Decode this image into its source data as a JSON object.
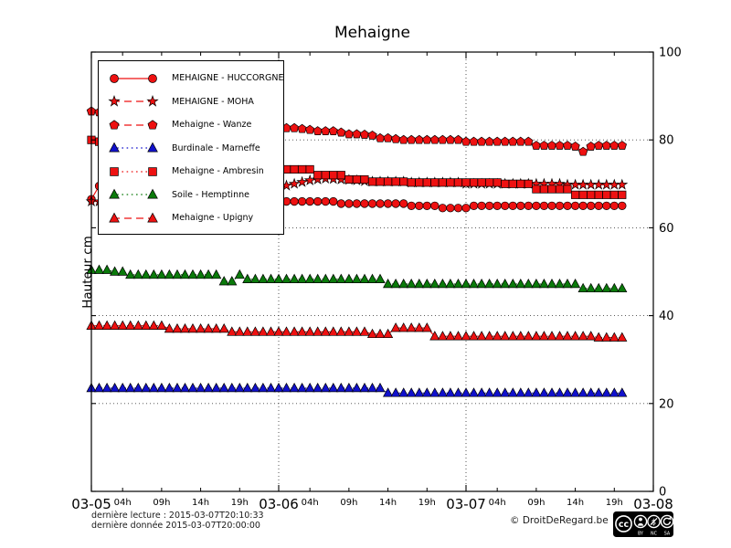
{
  "title": "Mehaigne",
  "ylabel": "Hauteur cm",
  "footer": {
    "derniere_lecture": "dernière lecture : 2015-03-07T20:10:33",
    "derniere_donnee": "dernière donnée  2015-03-07T20:00:00",
    "copyright": "© DroitDeRegard.be",
    "cc_badge_labels": [
      "BY",
      "NC",
      "SA"
    ]
  },
  "chart_data": {
    "type": "line",
    "title": "Mehaigne",
    "ylabel": "Hauteur cm",
    "ylim": [
      0,
      100
    ],
    "y_ticks": [
      0,
      20,
      40,
      60,
      80,
      100
    ],
    "y_gridlines": [
      20,
      40,
      60,
      80
    ],
    "x_start": "2015-03-05T00:00",
    "x_range_hours": [
      0,
      72
    ],
    "x_major_ticks": [
      {
        "h": 0,
        "label": "03-05"
      },
      {
        "h": 24,
        "label": "03-06"
      },
      {
        "h": 48,
        "label": "03-07"
      },
      {
        "h": 72,
        "label": "03-08"
      }
    ],
    "x_minor_ticks": [
      {
        "h": 4,
        "label": "04h"
      },
      {
        "h": 9,
        "label": "09h"
      },
      {
        "h": 14,
        "label": "14h"
      },
      {
        "h": 19,
        "label": "19h"
      },
      {
        "h": 28,
        "label": "04h"
      },
      {
        "h": 33,
        "label": "09h"
      },
      {
        "h": 38,
        "label": "14h"
      },
      {
        "h": 43,
        "label": "19h"
      },
      {
        "h": 52,
        "label": "04h"
      },
      {
        "h": 57,
        "label": "09h"
      },
      {
        "h": 62,
        "label": "14h"
      },
      {
        "h": 67,
        "label": "19h"
      }
    ],
    "x_day_gridlines": [
      24,
      48
    ],
    "grid_style": "dotted",
    "legend_position": "upper-left",
    "sample_interval_hours": 1,
    "sample_start_hour": 0,
    "series": [
      {
        "label": "MEHAIGNE - HUCCORGNE",
        "slug": "huccorgne",
        "color": "#ee1111",
        "marker": "circle",
        "line": "solid",
        "values": [
          66.5,
          69.5,
          68.8,
          68.5,
          68.2,
          68,
          67.8,
          67.6,
          67.4,
          67.3,
          67.2,
          67.1,
          67,
          67,
          66.9,
          66.8,
          66.8,
          66.7,
          66.6,
          66.5,
          66.4,
          66.3,
          66.2,
          66.1,
          66,
          66,
          66,
          66,
          66,
          66,
          66,
          66,
          65.5,
          65.5,
          65.5,
          65.5,
          65.5,
          65.5,
          65.5,
          65.5,
          65.5,
          65,
          65,
          65,
          65,
          64.5,
          64.5,
          64.5,
          64.5,
          65,
          65,
          65,
          65,
          65,
          65,
          65,
          65,
          65,
          65,
          65,
          65,
          65,
          65,
          65,
          65,
          65,
          65,
          65,
          65
        ]
      },
      {
        "label": "MEHAIGNE - MOHA",
        "slug": "moha",
        "color": "#ee1111",
        "marker": "star",
        "line": "dashed",
        "values": [
          66,
          66,
          66,
          66,
          66,
          66,
          66.5,
          66.5,
          66.5,
          66.5,
          66.5,
          66.5,
          67.2,
          67.2,
          67.2,
          67.2,
          67.2,
          67.2,
          68,
          68,
          68,
          68,
          68.8,
          68.8,
          69.3,
          69.6,
          70,
          70.4,
          70.8,
          71,
          71.2,
          71.1,
          71,
          70.9,
          70.8,
          70.6,
          70.5,
          70.5,
          70.5,
          70.5,
          70.5,
          70.3,
          70.3,
          70.3,
          70.3,
          70.3,
          70.3,
          70.3,
          70,
          70,
          70,
          70,
          70,
          70,
          70,
          70,
          70,
          70,
          70,
          70,
          70,
          69.8,
          69.8,
          69.8,
          69.8,
          69.8,
          69.8,
          69.8,
          69.8
        ]
      },
      {
        "label": "Mehaigne - Wanze",
        "slug": "wanze",
        "color": "#ee1111",
        "marker": "pentagon",
        "line": "dashed",
        "values": [
          86.5,
          86.3,
          86,
          85.6,
          85.2,
          84.8,
          84.4,
          84,
          83.7,
          83.4,
          83.2,
          83,
          83,
          83,
          83,
          83,
          83,
          83,
          82.9,
          82.9,
          82.8,
          82.8,
          82.7,
          82.7,
          82.7,
          82.7,
          82.7,
          82.5,
          82.3,
          82,
          82,
          82,
          81.7,
          81.3,
          81.3,
          81.2,
          81,
          80.4,
          80.4,
          80.2,
          80,
          80,
          80,
          80,
          80,
          80,
          80,
          80,
          79.6,
          79.6,
          79.6,
          79.6,
          79.6,
          79.6,
          79.6,
          79.6,
          79.6,
          78.7,
          78.7,
          78.7,
          78.7,
          78.7,
          78.5,
          77.3,
          78.5,
          78.7,
          78.7,
          78.7,
          78.7
        ]
      },
      {
        "label": "Burdinale - Marneffe",
        "slug": "marneffe",
        "color": "#1111cc",
        "marker": "triangle",
        "line": "dotted",
        "values": [
          23.5,
          23.5,
          23.5,
          23.5,
          23.5,
          23.5,
          23.5,
          23.5,
          23.5,
          23.5,
          23.5,
          23.5,
          23.5,
          23.5,
          23.5,
          23.5,
          23.5,
          23.5,
          23.5,
          23.5,
          23.5,
          23.5,
          23.5,
          23.5,
          23.5,
          23.5,
          23.5,
          23.5,
          23.5,
          23.5,
          23.5,
          23.5,
          23.5,
          23.5,
          23.5,
          23.5,
          23.5,
          23.5,
          22.4,
          22.4,
          22.4,
          22.4,
          22.4,
          22.4,
          22.4,
          22.4,
          22.4,
          22.4,
          22.4,
          22.4,
          22.4,
          22.4,
          22.4,
          22.4,
          22.4,
          22.4,
          22.4,
          22.4,
          22.4,
          22.4,
          22.4,
          22.4,
          22.4,
          22.4,
          22.4,
          22.4,
          22.4,
          22.4,
          22.4
        ]
      },
      {
        "label": "Mehaigne - Ambresin",
        "slug": "ambresin",
        "color": "#ee1111",
        "marker": "square",
        "line": "dotted",
        "values": [
          80,
          79.6,
          79.2,
          78.8,
          78.4,
          78,
          77.6,
          77.2,
          76.8,
          76.4,
          76,
          75.7,
          75.4,
          75.1,
          74.8,
          74.5,
          74.3,
          74.1,
          73.9,
          73.8,
          73.7,
          73.6,
          73.5,
          73.5,
          73.3,
          73.3,
          73.3,
          73.3,
          73.3,
          72,
          72,
          72,
          72,
          71,
          71,
          71,
          70.5,
          70.5,
          70.5,
          70.5,
          70.5,
          70.3,
          70.3,
          70.3,
          70.3,
          70.3,
          70.3,
          70.3,
          70.3,
          70.3,
          70.3,
          70.3,
          70.3,
          70,
          70,
          70,
          70,
          68.8,
          68.8,
          68.8,
          68.8,
          68.8,
          67.5,
          67.5,
          67.5,
          67.5,
          67.5,
          67.5,
          67.5
        ]
      },
      {
        "label": "Soile - Hemptinne",
        "slug": "hemptinne",
        "color": "#0a7a0a",
        "marker": "triangle",
        "line": "dotted",
        "values": [
          50.4,
          50.4,
          50.4,
          50,
          50,
          49.3,
          49.3,
          49.3,
          49.3,
          49.3,
          49.3,
          49.3,
          49.3,
          49.3,
          49.3,
          49.3,
          49.3,
          47.8,
          47.8,
          49.3,
          48.3,
          48.3,
          48.3,
          48.3,
          48.3,
          48.3,
          48.3,
          48.3,
          48.3,
          48.3,
          48.3,
          48.3,
          48.3,
          48.3,
          48.3,
          48.3,
          48.3,
          48.3,
          47.2,
          47.2,
          47.2,
          47.2,
          47.2,
          47.2,
          47.2,
          47.2,
          47.2,
          47.2,
          47.2,
          47.2,
          47.2,
          47.2,
          47.2,
          47.2,
          47.2,
          47.2,
          47.2,
          47.2,
          47.2,
          47.2,
          47.2,
          47.2,
          47.2,
          46.2,
          46.2,
          46.2,
          46.2,
          46.2,
          46.2
        ]
      },
      {
        "label": "Mehaigne - Upigny",
        "slug": "upigny",
        "color": "#ee1111",
        "marker": "triangle",
        "line": "dashed",
        "values": [
          37.7,
          37.7,
          37.7,
          37.7,
          37.7,
          37.7,
          37.7,
          37.7,
          37.7,
          37.7,
          37,
          37,
          37,
          37,
          37,
          37,
          37,
          37,
          36.3,
          36.3,
          36.3,
          36.3,
          36.3,
          36.3,
          36.3,
          36.3,
          36.3,
          36.3,
          36.3,
          36.3,
          36.3,
          36.3,
          36.3,
          36.3,
          36.3,
          36.3,
          35.8,
          35.8,
          35.8,
          37.2,
          37.2,
          37.2,
          37.2,
          37.2,
          35.3,
          35.3,
          35.3,
          35.3,
          35.3,
          35.3,
          35.3,
          35.3,
          35.3,
          35.3,
          35.3,
          35.3,
          35.3,
          35.3,
          35.3,
          35.3,
          35.3,
          35.3,
          35.3,
          35.3,
          35.3,
          35,
          35,
          35,
          35
        ]
      }
    ]
  }
}
